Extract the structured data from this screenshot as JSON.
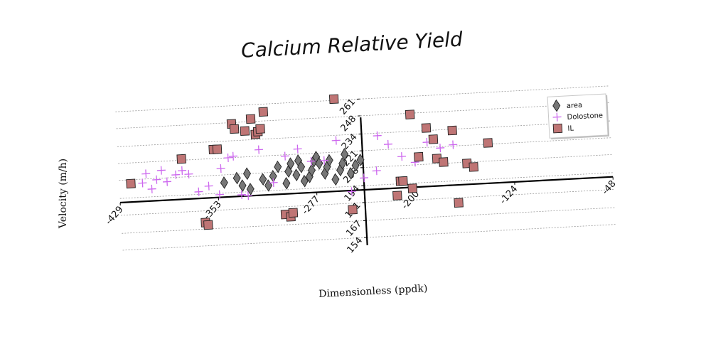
{
  "chart_data": {
    "type": "scatter",
    "title": "Calcium Relative Yield",
    "xlabel": "Dimensionless (ppdk)",
    "ylabel": "Velocity (m/h)",
    "x_ticks": [
      "-429",
      "-353",
      "-277",
      "-200",
      "-124",
      "-48"
    ],
    "y_ticks": [
      "154",
      "167",
      "181",
      "194",
      "208",
      "221",
      "234",
      "248",
      "261"
    ],
    "xlim": [
      -429,
      -48
    ],
    "ylim": [
      148,
      266
    ],
    "grid": "horizontal dotted",
    "legend_position": "top-right",
    "series": [
      {
        "name": "area",
        "marker": "diamond",
        "color": "#777777",
        "points": [
          [
            -348,
            202
          ],
          [
            -338,
            205
          ],
          [
            -334,
            199
          ],
          [
            -330,
            208
          ],
          [
            -328,
            196
          ],
          [
            -318,
            203
          ],
          [
            -314,
            198
          ],
          [
            -310,
            205
          ],
          [
            -306,
            212
          ],
          [
            -300,
            199
          ],
          [
            -298,
            208
          ],
          [
            -296,
            214
          ],
          [
            -292,
            205
          ],
          [
            -290,
            216
          ],
          [
            -288,
            211
          ],
          [
            -286,
            200
          ],
          [
            -282,
            203
          ],
          [
            -280,
            208
          ],
          [
            -278,
            215
          ],
          [
            -276,
            218
          ],
          [
            -274,
            213
          ],
          [
            -270,
            205
          ],
          [
            -268,
            210
          ],
          [
            -266,
            215
          ],
          [
            -262,
            200
          ],
          [
            -258,
            207
          ],
          [
            -256,
            212
          ],
          [
            -254,
            219
          ],
          [
            -250,
            204
          ],
          [
            -246,
            210
          ],
          [
            -242,
            214
          ]
        ]
      },
      {
        "name": "Dolostone",
        "marker": "plus",
        "color": "#cc66ee",
        "points": [
          [
            -411,
            205
          ],
          [
            -408,
            212
          ],
          [
            -404,
            200
          ],
          [
            -400,
            207
          ],
          [
            -396,
            214
          ],
          [
            -392,
            205
          ],
          [
            -385,
            210
          ],
          [
            -380,
            213
          ],
          [
            -375,
            210
          ],
          [
            -368,
            196
          ],
          [
            -360,
            200
          ],
          [
            -352,
            193
          ],
          [
            -350,
            213
          ],
          [
            -344,
            221
          ],
          [
            -340,
            222
          ],
          [
            -335,
            192
          ],
          [
            -330,
            191
          ],
          [
            -320,
            226
          ],
          [
            -310,
            200
          ],
          [
            -300,
            220
          ],
          [
            -290,
            225
          ],
          [
            -280,
            215
          ],
          [
            -270,
            215
          ],
          [
            -260,
            230
          ],
          [
            -250,
            190
          ],
          [
            -240,
            200
          ],
          [
            -230,
            205
          ],
          [
            -228,
            232
          ],
          [
            -220,
            225
          ],
          [
            -210,
            215
          ],
          [
            -200,
            210
          ],
          [
            -190,
            225
          ],
          [
            -180,
            220
          ],
          [
            -170,
            222
          ]
        ]
      },
      {
        "name": "IL",
        "marker": "square",
        "color": "#bf7575",
        "points": [
          [
            -420,
            205
          ],
          [
            -380,
            222
          ],
          [
            -364,
            172
          ],
          [
            -362,
            170
          ],
          [
            -355,
            228
          ],
          [
            -352,
            228
          ],
          [
            -340,
            247
          ],
          [
            -338,
            243
          ],
          [
            -330,
            241
          ],
          [
            -325,
            250
          ],
          [
            -322,
            238
          ],
          [
            -320,
            240
          ],
          [
            -318,
            242
          ],
          [
            -315,
            255
          ],
          [
            -302,
            175
          ],
          [
            -298,
            173
          ],
          [
            -296,
            176
          ],
          [
            -260,
            262
          ],
          [
            -250,
            176
          ],
          [
            -215,
            185
          ],
          [
            -212,
            196
          ],
          [
            -210,
            196
          ],
          [
            -203,
            190
          ],
          [
            -202,
            247
          ],
          [
            -197,
            214
          ],
          [
            -190,
            236
          ],
          [
            -185,
            227
          ],
          [
            -183,
            212
          ],
          [
            -178,
            209
          ],
          [
            -170,
            233
          ],
          [
            -168,
            177
          ],
          [
            -160,
            207
          ],
          [
            -155,
            204
          ],
          [
            -143,
            222
          ],
          [
            -75,
            226
          ]
        ]
      }
    ]
  }
}
